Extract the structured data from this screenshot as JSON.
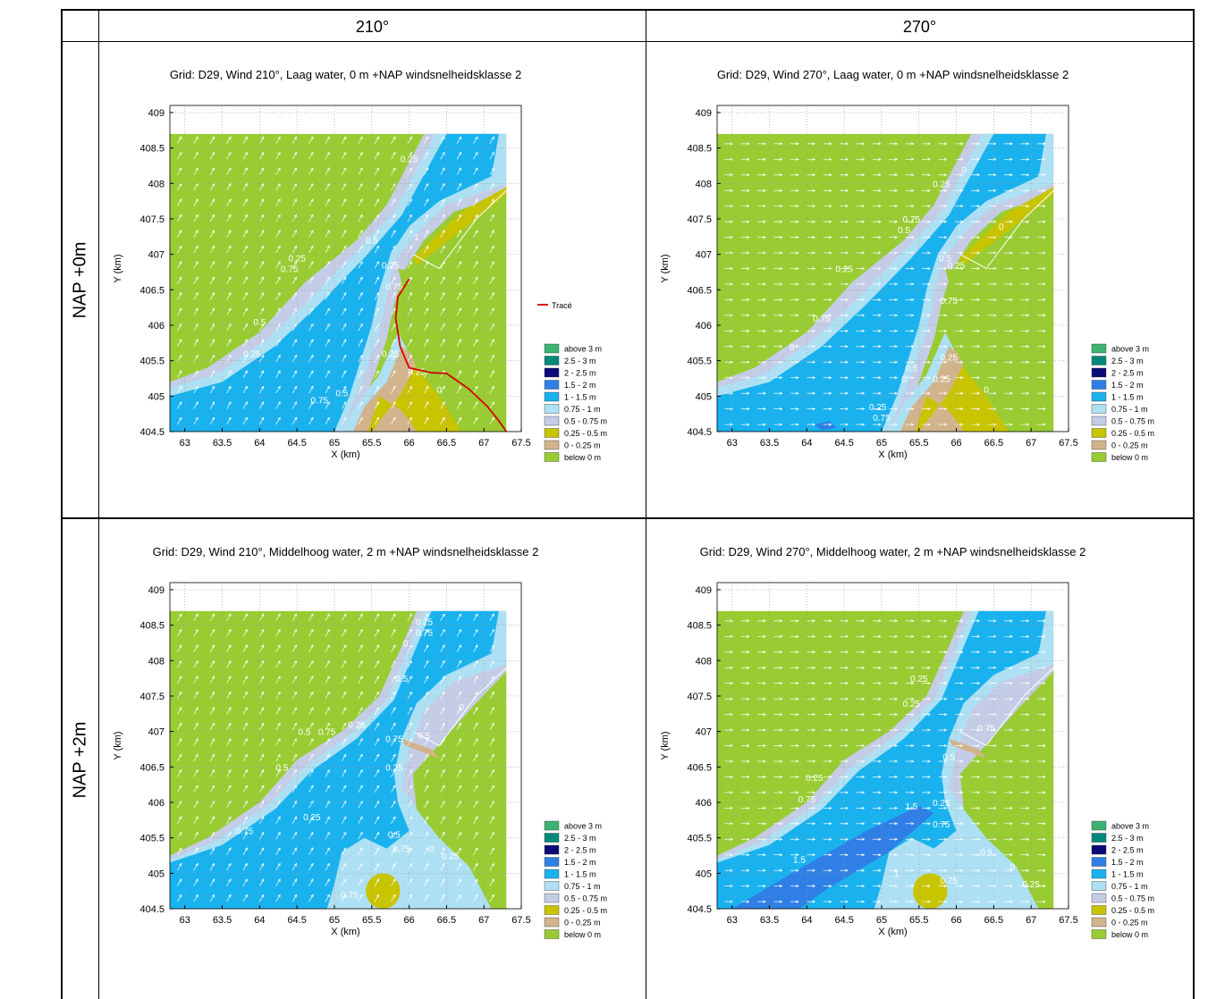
{
  "column_headers": [
    "210°",
    "270°"
  ],
  "row_headers": [
    "NAP +0m",
    "NAP +2m"
  ],
  "legend": {
    "trace_label": "Tracé",
    "trace_color": "#d40000",
    "classes": [
      {
        "label": "above 3 m",
        "color": "#3cb371"
      },
      {
        "label": "2.5 - 3 m",
        "color": "#00897b"
      },
      {
        "label": "2 - 2.5 m",
        "color": "#0a0a78"
      },
      {
        "label": "1.5 - 2 m",
        "color": "#2f7fe6"
      },
      {
        "label": "1 - 1.5 m",
        "color": "#19b2ef"
      },
      {
        "label": "0.75 - 1 m",
        "color": "#aee0f4"
      },
      {
        "label": "0.5 - 0.75 m",
        "color": "#c5cde6"
      },
      {
        "label": "0.25 - 0.5 m",
        "color": "#c8c400"
      },
      {
        "label": "0 - 0.25 m",
        "color": "#d2b48c"
      },
      {
        "label": "below 0 m",
        "color": "#99cc33"
      }
    ]
  },
  "chart_data": [
    {
      "type": "heatmap",
      "title": "Grid: D29, Wind 210°, Laag water, 0 m +NAP windsnelheidsklasse 2",
      "xlabel": "X (km)",
      "ylabel": "Y (km)",
      "xlim": [
        62.8,
        67.5
      ],
      "ylim": [
        404.5,
        409.1
      ],
      "xticks": [
        "63",
        "63.5",
        "64",
        "64.5",
        "65",
        "65.5",
        "66",
        "66.5",
        "67",
        "67.5"
      ],
      "yticks": [
        "404.5",
        "405",
        "405.5",
        "406",
        "406.5",
        "407",
        "407.5",
        "408",
        "408.5",
        "409"
      ],
      "grid": true,
      "wind_direction_deg": 210,
      "has_trace": true,
      "variant": "low210",
      "contour_labels": [
        {
          "text": "0.25",
          "x": 66.0,
          "y": 408.3
        },
        {
          "text": "0.5",
          "x": 65.5,
          "y": 407.15
        },
        {
          "text": "1",
          "x": 66.1,
          "y": 407.2
        },
        {
          "text": "0.25",
          "x": 64.5,
          "y": 406.9
        },
        {
          "text": "0.75",
          "x": 64.4,
          "y": 406.75
        },
        {
          "text": "0.25",
          "x": 65.75,
          "y": 406.8
        },
        {
          "text": "0.5",
          "x": 64.0,
          "y": 406.0
        },
        {
          "text": "0.75",
          "x": 65.8,
          "y": 406.5
        },
        {
          "text": "0.25",
          "x": 63.9,
          "y": 405.55
        },
        {
          "text": "0.25",
          "x": 65.75,
          "y": 405.55
        },
        {
          "text": "0.25",
          "x": 66.1,
          "y": 405.3
        },
        {
          "text": "0",
          "x": 66.4,
          "y": 405.05
        },
        {
          "text": "0.5",
          "x": 65.1,
          "y": 405.0
        },
        {
          "text": "0.75",
          "x": 64.8,
          "y": 404.9
        }
      ],
      "trace": [
        [
          66.0,
          406.65
        ],
        [
          65.85,
          406.4
        ],
        [
          65.82,
          406.1
        ],
        [
          65.88,
          405.7
        ],
        [
          66.0,
          405.4
        ],
        [
          66.3,
          405.33
        ],
        [
          66.5,
          405.32
        ],
        [
          66.8,
          405.1
        ],
        [
          67.05,
          404.85
        ],
        [
          67.2,
          404.65
        ],
        [
          67.3,
          404.5
        ]
      ]
    },
    {
      "type": "heatmap",
      "title": "Grid: D29, Wind 270°, Laag water, 0 m +NAP windsnelheidsklasse 2",
      "xlabel": "X (km)",
      "ylabel": "Y (km)",
      "xlim": [
        62.8,
        67.5
      ],
      "ylim": [
        404.5,
        409.1
      ],
      "xticks": [
        "63",
        "63.5",
        "64",
        "64.5",
        "65",
        "65.5",
        "66",
        "66.5",
        "67",
        "67.5"
      ],
      "yticks": [
        "404.5",
        "405",
        "405.5",
        "406",
        "406.5",
        "407",
        "407.5",
        "408",
        "408.5",
        "409"
      ],
      "grid": true,
      "wind_direction_deg": 270,
      "has_trace": false,
      "variant": "low270",
      "contour_labels": [
        {
          "text": "0",
          "x": 66.1,
          "y": 408.15
        },
        {
          "text": "0.25",
          "x": 65.8,
          "y": 407.95
        },
        {
          "text": "0.75",
          "x": 65.4,
          "y": 407.45
        },
        {
          "text": "0.5",
          "x": 65.3,
          "y": 407.3
        },
        {
          "text": "0",
          "x": 66.6,
          "y": 407.35
        },
        {
          "text": "0.25",
          "x": 64.5,
          "y": 406.75
        },
        {
          "text": "0.5",
          "x": 65.85,
          "y": 406.9
        },
        {
          "text": "0.25",
          "x": 66.0,
          "y": 406.8
        },
        {
          "text": "0.75",
          "x": 65.9,
          "y": 406.3
        },
        {
          "text": "0.75",
          "x": 64.2,
          "y": 406.05
        },
        {
          "text": "0",
          "x": 63.8,
          "y": 405.65
        },
        {
          "text": "0.25",
          "x": 65.9,
          "y": 405.5
        },
        {
          "text": "0.5",
          "x": 65.4,
          "y": 405.35
        },
        {
          "text": "0",
          "x": 65.3,
          "y": 405.2
        },
        {
          "text": "0.25",
          "x": 65.8,
          "y": 405.2
        },
        {
          "text": "0",
          "x": 66.4,
          "y": 405.05
        },
        {
          "text": "0.25",
          "x": 64.95,
          "y": 404.8
        },
        {
          "text": "0.75",
          "x": 65.0,
          "y": 404.65
        }
      ]
    },
    {
      "type": "heatmap",
      "title": "Grid: D29, Wind 210°, Middelhoog water, 2 m +NAP windsnelheidsklasse 2",
      "xlabel": "X (km)",
      "ylabel": "Y (km)",
      "xlim": [
        62.8,
        67.5
      ],
      "ylim": [
        404.5,
        409.1
      ],
      "xticks": [
        "63",
        "63.5",
        "64",
        "64.5",
        "65",
        "65.5",
        "66",
        "66.5",
        "67",
        "67.5"
      ],
      "yticks": [
        "404.5",
        "405",
        "405.5",
        "406",
        "406.5",
        "407",
        "407.5",
        "408",
        "408.5",
        "409"
      ],
      "grid": true,
      "wind_direction_deg": 210,
      "has_trace": false,
      "variant": "mid210",
      "contour_labels": [
        {
          "text": "0.25",
          "x": 66.2,
          "y": 408.5
        },
        {
          "text": "0.75",
          "x": 66.2,
          "y": 408.35
        },
        {
          "text": "0",
          "x": 65.95,
          "y": 408.2
        },
        {
          "text": "0.5",
          "x": 65.9,
          "y": 407.7
        },
        {
          "text": "0",
          "x": 66.7,
          "y": 407.3
        },
        {
          "text": "0.25",
          "x": 65.3,
          "y": 407.05
        },
        {
          "text": "0.75",
          "x": 64.9,
          "y": 406.95
        },
        {
          "text": "0.5",
          "x": 64.6,
          "y": 406.95
        },
        {
          "text": "0.75",
          "x": 65.8,
          "y": 406.85
        },
        {
          "text": "0.5",
          "x": 66.2,
          "y": 406.9
        },
        {
          "text": "0.5",
          "x": 64.3,
          "y": 406.45
        },
        {
          "text": "0.25",
          "x": 65.8,
          "y": 406.45
        },
        {
          "text": "0.25",
          "x": 64.7,
          "y": 405.75
        },
        {
          "text": "0.75",
          "x": 63.8,
          "y": 405.55
        },
        {
          "text": "0.5",
          "x": 65.8,
          "y": 405.5
        },
        {
          "text": "0.75",
          "x": 65.9,
          "y": 405.3
        },
        {
          "text": "0",
          "x": 66.3,
          "y": 405.3
        },
        {
          "text": "0.25",
          "x": 66.55,
          "y": 405.2
        },
        {
          "text": "0.75",
          "x": 65.2,
          "y": 404.65
        }
      ]
    },
    {
      "type": "heatmap",
      "title": "Grid: D29, Wind 270°, Middelhoog water, 2 m +NAP windsnelheidsklasse 2",
      "xlabel": "X (km)",
      "ylabel": "Y (km)",
      "xlim": [
        62.8,
        67.5
      ],
      "ylim": [
        404.5,
        409.1
      ],
      "xticks": [
        "63",
        "63.5",
        "64",
        "64.5",
        "65",
        "65.5",
        "66",
        "66.5",
        "67",
        "67.5"
      ],
      "yticks": [
        "404.5",
        "405",
        "405.5",
        "406",
        "406.5",
        "407",
        "407.5",
        "408",
        "408.5",
        "409"
      ],
      "grid": true,
      "wind_direction_deg": 270,
      "has_trace": false,
      "variant": "mid270",
      "contour_labels": [
        {
          "text": "0.25",
          "x": 65.5,
          "y": 407.7
        },
        {
          "text": "0.25",
          "x": 65.4,
          "y": 407.35
        },
        {
          "text": "0.75",
          "x": 66.4,
          "y": 407.0
        },
        {
          "text": "0.5",
          "x": 65.9,
          "y": 406.6
        },
        {
          "text": "0.25",
          "x": 64.1,
          "y": 406.3
        },
        {
          "text": "0.75",
          "x": 64.0,
          "y": 406.0
        },
        {
          "text": "1.5",
          "x": 65.4,
          "y": 405.9
        },
        {
          "text": "0.25",
          "x": 65.8,
          "y": 405.95
        },
        {
          "text": "0.75",
          "x": 65.8,
          "y": 405.65
        },
        {
          "text": "1.5",
          "x": 63.9,
          "y": 405.15
        },
        {
          "text": "0.5",
          "x": 66.4,
          "y": 405.25
        },
        {
          "text": "1",
          "x": 65.2,
          "y": 404.95
        },
        {
          "text": "0",
          "x": 66.75,
          "y": 405.05
        },
        {
          "text": "0.75",
          "x": 65.9,
          "y": 404.85
        },
        {
          "text": "0.25",
          "x": 67.0,
          "y": 404.8
        }
      ]
    }
  ]
}
